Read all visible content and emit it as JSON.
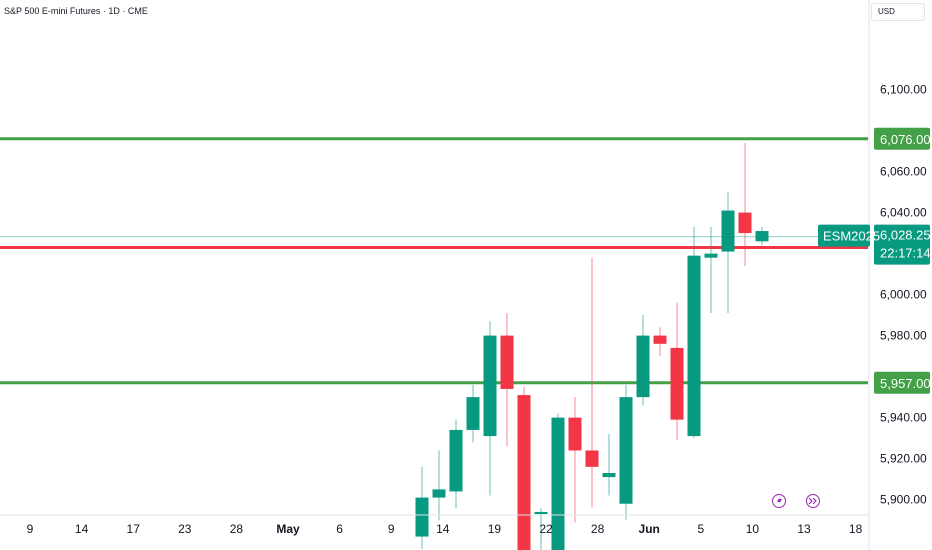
{
  "header": {
    "symbol_title": "S&P 500 E-mini Futures · 1D · CME",
    "currency": "USD"
  },
  "colors": {
    "up": "#089981",
    "down": "#f23645",
    "level_line": "#43a047",
    "support_line": "#f23645"
  },
  "chart_data": {
    "type": "candlestick",
    "y_ticks": [
      {
        "value": 5900,
        "label": "5,900.00"
      },
      {
        "value": 5920,
        "label": "5,920.00"
      },
      {
        "value": 5940,
        "label": "5,940.00"
      },
      {
        "value": 5980,
        "label": "5,980.00"
      },
      {
        "value": 6000,
        "label": "6,000.00"
      },
      {
        "value": 6040,
        "label": "6,040.00"
      },
      {
        "value": 6060,
        "label": "6,060.00"
      },
      {
        "value": 6100,
        "label": "6,100.00"
      }
    ],
    "x_ticks": [
      {
        "label": "9",
        "bold": false
      },
      {
        "label": "14",
        "bold": false
      },
      {
        "label": "17",
        "bold": false
      },
      {
        "label": "23",
        "bold": false
      },
      {
        "label": "28",
        "bold": false
      },
      {
        "label": "May",
        "bold": true
      },
      {
        "label": "6",
        "bold": false
      },
      {
        "label": "9",
        "bold": false
      },
      {
        "label": "14",
        "bold": false
      },
      {
        "label": "19",
        "bold": false
      },
      {
        "label": "22",
        "bold": false
      },
      {
        "label": "28",
        "bold": false
      },
      {
        "label": "Jun",
        "bold": true
      },
      {
        "label": "5",
        "bold": false
      },
      {
        "label": "10",
        "bold": false
      },
      {
        "label": "13",
        "bold": false
      },
      {
        "label": "18",
        "bold": false
      }
    ],
    "candles": [
      {
        "o": 5882,
        "h": 5916,
        "l": 5876,
        "c": 5901
      },
      {
        "o": 5901,
        "h": 5924,
        "l": 5890,
        "c": 5905
      },
      {
        "o": 5904,
        "h": 5939,
        "l": 5896,
        "c": 5934
      },
      {
        "o": 5934,
        "h": 5956,
        "l": 5928,
        "c": 5950
      },
      {
        "o": 5931,
        "h": 5987,
        "l": 5902,
        "c": 5980
      },
      {
        "o": 5980,
        "h": 5991,
        "l": 5926,
        "c": 5954
      },
      {
        "o": 5951,
        "h": 5955,
        "l": 5870,
        "c": 5872
      },
      {
        "o": 5893,
        "h": 5896,
        "l": 5872,
        "c": 5894
      },
      {
        "o": 5874,
        "h": 5942,
        "l": 5870,
        "c": 5940
      },
      {
        "o": 5940,
        "h": 5950,
        "l": 5889,
        "c": 5924
      },
      {
        "o": 5924,
        "h": 6018,
        "l": 5896,
        "c": 5916
      },
      {
        "o": 5911,
        "h": 5932,
        "l": 5902,
        "c": 5913
      },
      {
        "o": 5898,
        "h": 5956,
        "l": 5890,
        "c": 5950
      },
      {
        "o": 5950,
        "h": 5990,
        "l": 5946,
        "c": 5980
      },
      {
        "o": 5980,
        "h": 5984,
        "l": 5970,
        "c": 5976
      },
      {
        "o": 5974,
        "h": 5996,
        "l": 5929,
        "c": 5939
      },
      {
        "o": 5931,
        "h": 6033,
        "l": 5930,
        "c": 6019
      },
      {
        "o": 6018,
        "h": 6033,
        "l": 5991,
        "c": 6020
      },
      {
        "o": 6021,
        "h": 6050,
        "l": 5991,
        "c": 6041
      },
      {
        "o": 6040,
        "h": 6074,
        "l": 6014,
        "c": 6030
      },
      {
        "o": 6026,
        "h": 6033,
        "l": 6024,
        "c": 6031
      }
    ],
    "y_range": [
      5893,
      6131
    ],
    "x_range": [
      0,
      24.5
    ],
    "horizontal_levels": [
      {
        "value": 6076.0,
        "label": "6,076.00",
        "kind": "resistance"
      },
      {
        "value": 5957.0,
        "label": "5,957.00",
        "kind": "support"
      },
      {
        "value": 6023.0,
        "label": "6,023.00",
        "kind": "red-level"
      }
    ],
    "last_price": {
      "symbol": "ESM2025",
      "value": 6028.25,
      "label": "6,028.25",
      "countdown": "22:17:14"
    },
    "grid": false
  }
}
